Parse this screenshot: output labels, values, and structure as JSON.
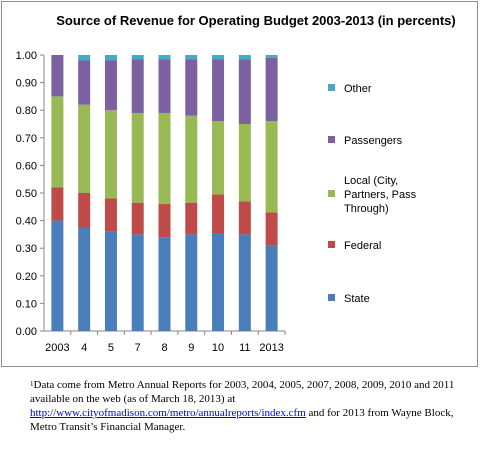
{
  "colors": {
    "State": "#4a7ebb",
    "Federal": "#be4b48",
    "Local": "#98b954",
    "Passengers": "#7d60a0",
    "Other": "#46aac5"
  },
  "chart_data": {
    "type": "bar",
    "stacked": true,
    "title": "Source of Revenue for Operating Budget 2003-2013 (in percents)",
    "xlabel": "",
    "ylabel": "",
    "categories": [
      "2003",
      "4",
      "5",
      "7",
      "8",
      "9",
      "10",
      "11",
      "2013"
    ],
    "ylim": [
      0,
      1
    ],
    "yticks": [
      "0.00",
      "0.10",
      "0.20",
      "0.30",
      "0.40",
      "0.50",
      "0.60",
      "0.70",
      "0.80",
      "0.90",
      "1.00"
    ],
    "grid": false,
    "legend_position": "right",
    "series": [
      {
        "name": "State",
        "values": [
          0.4,
          0.375,
          0.36,
          0.35,
          0.34,
          0.35,
          0.355,
          0.35,
          0.31
        ]
      },
      {
        "name": "Federal",
        "values": [
          0.12,
          0.125,
          0.12,
          0.115,
          0.12,
          0.115,
          0.14,
          0.12,
          0.12
        ]
      },
      {
        "name": "Local (City, Partners, Pass Through)",
        "values": [
          0.33,
          0.32,
          0.32,
          0.325,
          0.33,
          0.315,
          0.265,
          0.28,
          0.33
        ]
      },
      {
        "name": "Passengers",
        "values": [
          0.15,
          0.16,
          0.18,
          0.195,
          0.195,
          0.205,
          0.225,
          0.235,
          0.23
        ]
      },
      {
        "name": "Other",
        "values": [
          0.0,
          0.02,
          0.02,
          0.015,
          0.015,
          0.015,
          0.015,
          0.015,
          0.01
        ]
      }
    ],
    "legend_lines": [
      [
        "Other"
      ],
      [
        "Passengers"
      ],
      [
        "Local (City,",
        "Partners, Pass",
        "Through)"
      ],
      [
        "Federal"
      ],
      [
        "State"
      ]
    ]
  },
  "footnote": {
    "marker": "1",
    "line1": "Data come from Metro Annual Reports for 2003, 2004, 2005, 2007, 2008, 2009, 2010 and 2011 available on the web (as of March 18, 2013) at",
    "link": "http://www.cityofmadison.com/metro/annualreports/index.cfm",
    "line2": " and for 2013 from Wayne Block, Metro Transit’s Financial Manager."
  }
}
